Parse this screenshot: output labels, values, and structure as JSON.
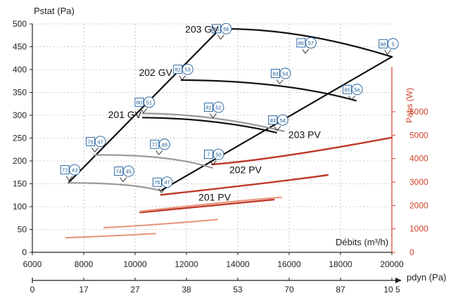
{
  "chart_data": {
    "type": "line",
    "title": "",
    "ylabel": "Pstat (Pa)",
    "xlabel": "Débits (m³/h)",
    "secondary_ylabel": "Pabs (W)",
    "secondary_xlabel": "pdyn (Pa)",
    "xlim": [
      6000,
      20000
    ],
    "ylim": [
      0,
      500
    ],
    "x_ticks": [
      "6000",
      "8000",
      "10000",
      "12000",
      "14000",
      "16000",
      "18000",
      "20000"
    ],
    "y_ticks": [
      "0",
      "50",
      "100",
      "150",
      "200",
      "250",
      "300",
      "350",
      "400",
      "450",
      "500"
    ],
    "right_ticks": [
      "0",
      "1000",
      "2000",
      "3000",
      "4000",
      "5000",
      "6000"
    ],
    "pdyn_ticks": [
      {
        "label": "0",
        "flow": 6000
      },
      {
        "label": "17",
        "flow": 8000
      },
      {
        "label": "27",
        "flow": 10000
      },
      {
        "label": "38",
        "flow": 12000
      },
      {
        "label": "53",
        "flow": 14000
      },
      {
        "label": "70",
        "flow": 16000
      },
      {
        "label": "87",
        "flow": 18000
      },
      {
        "label": "10 5",
        "flow": 20000
      }
    ],
    "colors": {
      "axis": "#222222",
      "grid": "#999999",
      "pressure_curve": "#111111",
      "gray_curve": "#9a9a9a",
      "pabs_dark": "#c0392b",
      "pabs_light": "#e8977d",
      "secondary_axis": "#d2402a",
      "badge": "#1a5a9a"
    },
    "series": [
      {
        "name": "203 GV",
        "group": "black",
        "x": [
          13300,
          16500,
          20000
        ],
        "y": [
          489,
          475,
          428
        ]
      },
      {
        "name": "202 GV",
        "group": "black",
        "x": [
          11800,
          15500,
          18600
        ],
        "y": [
          377,
          365,
          332
        ]
      },
      {
        "name": "201 GV",
        "group": "black",
        "x": [
          10300,
          13000,
          15500
        ],
        "y": [
          295,
          286,
          262
        ]
      },
      {
        "group": "black",
        "x": [
          7400,
          13300
        ],
        "y": [
          152,
          489
        ]
      },
      {
        "group": "black",
        "x": [
          11000,
          20000
        ],
        "y": [
          135,
          428
        ]
      },
      {
        "group": "gray",
        "x": [
          10300,
          13000,
          15800
        ],
        "y": [
          304,
          294,
          265
        ]
      },
      {
        "group": "gray",
        "x": [
          8400,
          11000,
          13000
        ],
        "y": [
          213,
          207,
          185
        ]
      },
      {
        "group": "gray",
        "x": [
          7400,
          9500,
          11000
        ],
        "y": [
          152,
          148,
          135
        ]
      },
      {
        "name": "203 PV",
        "group": "pabs_dark",
        "x": [
          13000,
          16000,
          20000
        ],
        "y": [
          3750,
          4150,
          4900
        ]
      },
      {
        "name": "202 PV",
        "group": "pabs_dark",
        "x": [
          11000,
          15000,
          17500
        ],
        "y": [
          2450,
          2950,
          3300
        ]
      },
      {
        "name": "201 PV",
        "group": "pabs_dark",
        "x": [
          10200,
          13000,
          15400
        ],
        "y": [
          1700,
          2000,
          2250
        ]
      },
      {
        "group": "pabs_light",
        "x": [
          10200,
          13200,
          15700
        ],
        "y": [
          1750,
          2100,
          2350
        ]
      },
      {
        "group": "pabs_light",
        "x": [
          8800,
          11000,
          13200
        ],
        "y": [
          1050,
          1200,
          1400
        ]
      },
      {
        "group": "pabs_light",
        "x": [
          7300,
          9000,
          10800
        ],
        "y": [
          620,
          700,
          800
        ]
      }
    ],
    "curve_labels": [
      {
        "text": "203 GV",
        "x": 12600,
        "y": 481
      },
      {
        "text": "202 GV",
        "x": 10800,
        "y": 386
      },
      {
        "text": "201 GV",
        "x": 9600,
        "y": 294
      },
      {
        "text": "203 PV",
        "x": 16600,
        "y": 250
      },
      {
        "text": "202 PV",
        "x": 14300,
        "y": 173
      },
      {
        "text": "201 PV",
        "x": 13100,
        "y": 113
      }
    ],
    "badges": [
      {
        "square": "85",
        "circle": "56",
        "x": 13300,
        "y": 488
      },
      {
        "square": "86",
        "circle": "57",
        "x": 16600,
        "y": 457
      },
      {
        "square": "88",
        "circle": "5",
        "x": 19800,
        "y": 455
      },
      {
        "square": "82",
        "circle": "53",
        "x": 11800,
        "y": 399
      },
      {
        "square": "83",
        "circle": "54",
        "x": 15600,
        "y": 390
      },
      {
        "square": "85",
        "circle": "56",
        "x": 18400,
        "y": 355
      },
      {
        "square": "80",
        "circle": "51",
        "x": 10300,
        "y": 327
      },
      {
        "square": "81",
        "circle": "52",
        "x": 13000,
        "y": 316
      },
      {
        "square": "83",
        "circle": "54",
        "x": 15500,
        "y": 288
      },
      {
        "square": "76",
        "circle": "47",
        "x": 8400,
        "y": 241
      },
      {
        "square": "77",
        "circle": "48",
        "x": 10900,
        "y": 235
      },
      {
        "square": "7",
        "circle": "50",
        "x": 13000,
        "y": 213
      },
      {
        "square": "72",
        "circle": "43",
        "x": 7400,
        "y": 179
      },
      {
        "square": "74",
        "circle": "45",
        "x": 9500,
        "y": 176
      },
      {
        "square": "76",
        "circle": "47",
        "x": 11000,
        "y": 152
      }
    ]
  }
}
